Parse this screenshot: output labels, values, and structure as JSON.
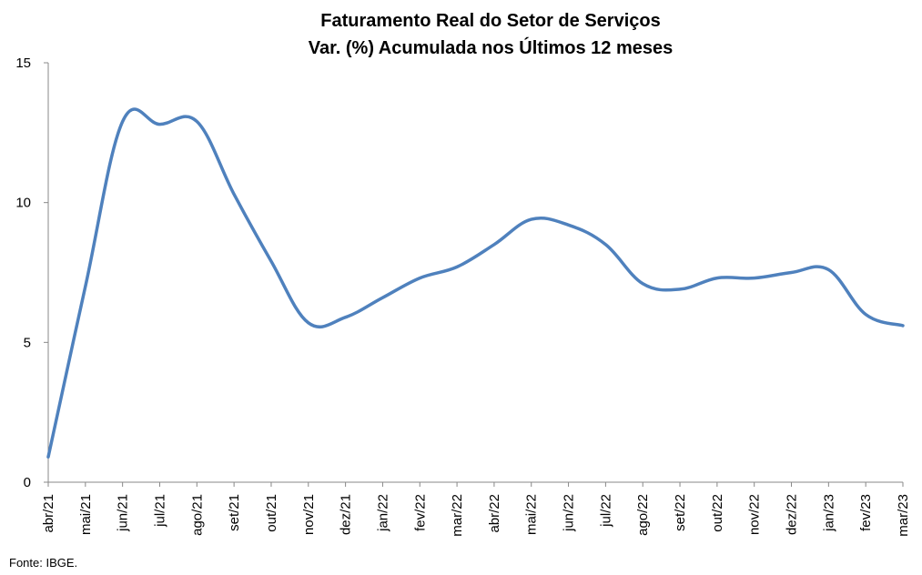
{
  "chart_data": {
    "type": "line",
    "title": "Faturamento Real do Setor de Serviços",
    "subtitle": "Var. (%) Acumulada nos Últimos 12 meses",
    "xlabel": "",
    "ylabel": "",
    "ylim": [
      0,
      15
    ],
    "yticks": [
      "0",
      "5",
      "10",
      "15"
    ],
    "grid": false,
    "categories": [
      "abr/21",
      "mai/21",
      "jun/21",
      "jul/21",
      "ago/21",
      "set/21",
      "out/21",
      "nov/21",
      "dez/21",
      "jan/22",
      "fev/22",
      "mar/22",
      "abr/22",
      "mai/22",
      "jun/22",
      "jul/22",
      "ago/22",
      "set/22",
      "out/22",
      "nov/22",
      "dez/22",
      "jan/23",
      "fev/23",
      "mar/23"
    ],
    "series": [
      {
        "color": "#4F81BD",
        "values": [
          0.9,
          7.0,
          12.9,
          12.8,
          12.9,
          10.3,
          7.9,
          5.7,
          5.9,
          6.6,
          7.3,
          7.7,
          8.5,
          9.4,
          9.2,
          8.5,
          7.1,
          6.9,
          7.3,
          7.3,
          7.5,
          7.6,
          6.0,
          5.6
        ]
      }
    ]
  },
  "source": "Fonte: IBGE."
}
